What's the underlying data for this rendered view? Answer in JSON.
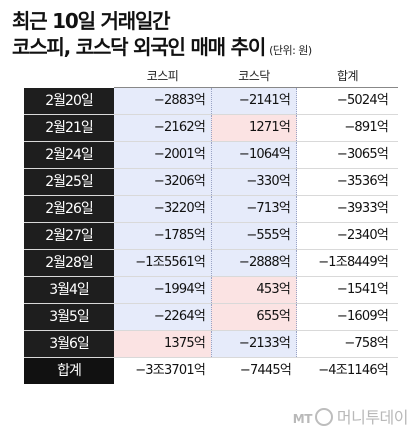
{
  "title": {
    "line1": "최근 10일 거래일간",
    "line2": "코스피, 코스닥 외국인 매매 추이",
    "unit": "(단위: 원)"
  },
  "table": {
    "headers": [
      "코스피",
      "코스닥",
      "합계"
    ],
    "rows": [
      {
        "label": "2월20일",
        "kospi": "−2883억",
        "kosdaq": "−2141억",
        "total": "−5024억",
        "kospi_pos": false,
        "kosdaq_pos": false
      },
      {
        "label": "2월21일",
        "kospi": "−2162억",
        "kosdaq": "1271억",
        "total": "−891억",
        "kospi_pos": false,
        "kosdaq_pos": true
      },
      {
        "label": "2월24일",
        "kospi": "−2001억",
        "kosdaq": "−1064억",
        "total": "−3065억",
        "kospi_pos": false,
        "kosdaq_pos": false
      },
      {
        "label": "2월25일",
        "kospi": "−3206억",
        "kosdaq": "−330억",
        "total": "−3536억",
        "kospi_pos": false,
        "kosdaq_pos": false
      },
      {
        "label": "2월26일",
        "kospi": "−3220억",
        "kosdaq": "−713억",
        "total": "−3933억",
        "kospi_pos": false,
        "kosdaq_pos": false
      },
      {
        "label": "2월27일",
        "kospi": "−1785억",
        "kosdaq": "−555억",
        "total": "−2340억",
        "kospi_pos": false,
        "kosdaq_pos": false
      },
      {
        "label": "2월28일",
        "kospi": "−1조5561억",
        "kosdaq": "−2888억",
        "total": "−1조8449억",
        "kospi_pos": false,
        "kosdaq_pos": false
      },
      {
        "label": "3월4일",
        "kospi": "−1994억",
        "kosdaq": "453억",
        "total": "−1541억",
        "kospi_pos": false,
        "kosdaq_pos": true
      },
      {
        "label": "3월5일",
        "kospi": "−2264억",
        "kosdaq": "655억",
        "total": "−1609억",
        "kospi_pos": false,
        "kosdaq_pos": true
      },
      {
        "label": "3월6일",
        "kospi": "1375억",
        "kosdaq": "−2133억",
        "total": "−758억",
        "kospi_pos": true,
        "kosdaq_pos": false
      }
    ],
    "sum": {
      "label": "합계",
      "kospi": "−3조3701억",
      "kosdaq": "−7445억",
      "total": "−4조1146억"
    }
  },
  "logo": {
    "mt": "MT",
    "text": "머니투데이"
  },
  "colors": {
    "label_bg": "#1e1e1e",
    "cell_bg": "#e6ebfa",
    "positive_bg": "#fbe3e3"
  }
}
